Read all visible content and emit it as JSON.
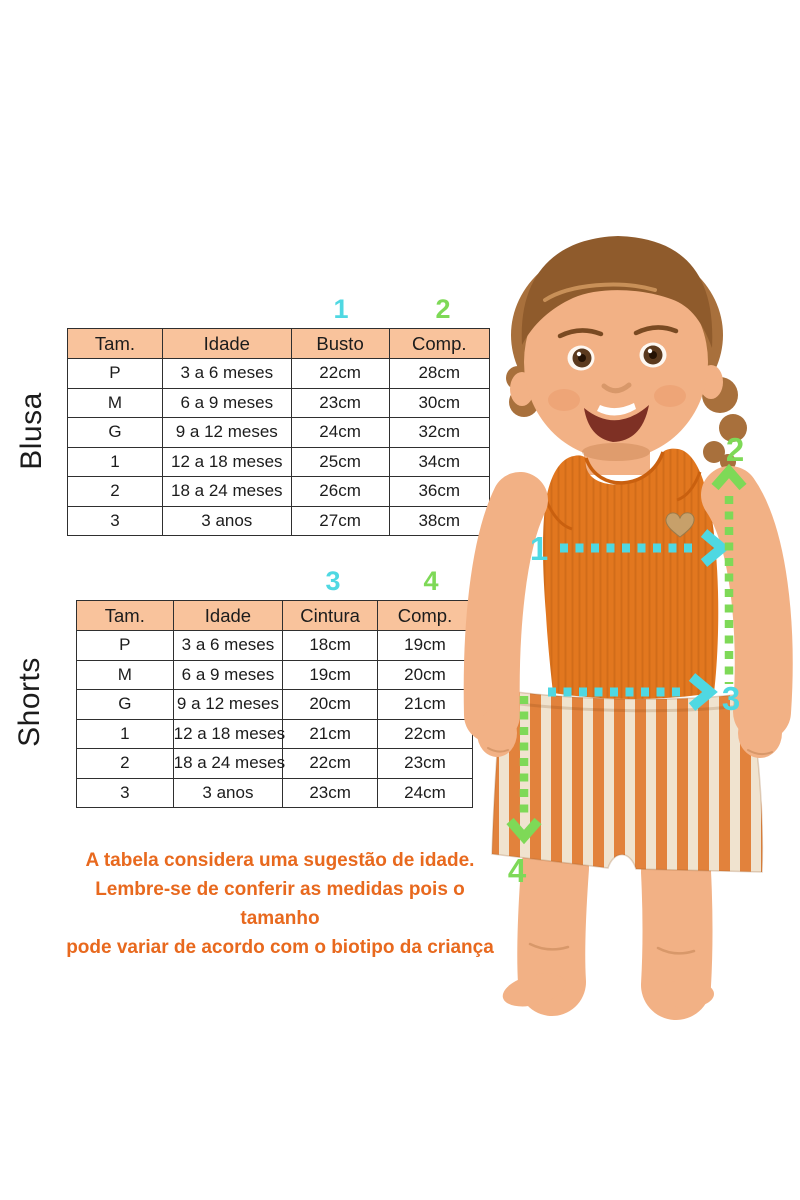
{
  "colors": {
    "peach": "#F9C39C",
    "cyan": "#4FD8E2",
    "green": "#7ED957",
    "orange": "#E8691E",
    "border": "#2F2F2F",
    "ink": "#1C1C1C",
    "tank_orange": "#E2771F",
    "tank_shade": "#C9600F",
    "skin": "#F2B185",
    "skin_shade": "#D8986A",
    "hair": "#A8703C",
    "hair_dark": "#8F5B2C",
    "stripe_orange": "#E2823C",
    "stripe_cream": "#F0E3CF",
    "tag_tan": "#C7A06A"
  },
  "tables": [
    {
      "group_label": "Blusa",
      "markers": [
        {
          "label": "1",
          "color": "cyan",
          "column": "Busto"
        },
        {
          "label": "2",
          "color": "green",
          "column": "Comp."
        }
      ],
      "headers": [
        "Tam.",
        "Idade",
        "Busto",
        "Comp."
      ],
      "rows": [
        [
          "P",
          "3 a 6 meses",
          "22cm",
          "28cm"
        ],
        [
          "M",
          "6 a 9 meses",
          "23cm",
          "30cm"
        ],
        [
          "G",
          "9 a 12 meses",
          "24cm",
          "32cm"
        ],
        [
          "1",
          "12 a 18 meses",
          "25cm",
          "34cm"
        ],
        [
          "2",
          "18 a 24 meses",
          "26cm",
          "36cm"
        ],
        [
          "3",
          "3 anos",
          "27cm",
          "38cm"
        ]
      ]
    },
    {
      "group_label": "Shorts",
      "markers": [
        {
          "label": "3",
          "color": "cyan",
          "column": "Cintura"
        },
        {
          "label": "4",
          "color": "green",
          "column": "Comp."
        }
      ],
      "headers": [
        "Tam.",
        "Idade",
        "Cintura",
        "Comp."
      ],
      "rows": [
        [
          "P",
          "3 a 6 meses",
          "18cm",
          "19cm"
        ],
        [
          "M",
          "6 a 9 meses",
          "19cm",
          "20cm"
        ],
        [
          "G",
          "9 a 12 meses",
          "20cm",
          "21cm"
        ],
        [
          "1",
          "12 a 18 meses",
          "21cm",
          "22cm"
        ],
        [
          "2",
          "18 a 24 meses",
          "22cm",
          "23cm"
        ],
        [
          "3",
          "3 anos",
          "23cm",
          "24cm"
        ]
      ]
    }
  ],
  "note": {
    "lines": [
      "A tabela considera uma sugestão de idade.",
      "Lembre-se de conferir as medidas pois o tamanho",
      "pode variar de acordo com o biotipo da criança"
    ]
  },
  "photo": {
    "markers": [
      "1",
      "2",
      "3",
      "4"
    ]
  }
}
